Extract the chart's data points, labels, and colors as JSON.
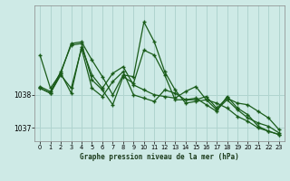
{
  "title": "Graphe pression niveau de la mer (hPa)",
  "background_color": "#ceeae6",
  "grid_color": "#b0d4cf",
  "line_color": "#1a5c1a",
  "xlim": [
    -0.5,
    23.5
  ],
  "ylim": [
    1036.6,
    1040.7
  ],
  "yticks": [
    1037,
    1038
  ],
  "xticks": [
    0,
    1,
    2,
    3,
    4,
    5,
    6,
    7,
    8,
    9,
    10,
    11,
    12,
    13,
    14,
    15,
    16,
    17,
    18,
    19,
    20,
    21,
    22,
    23
  ],
  "line1": [
    1039.2,
    1038.2,
    1038.65,
    1039.55,
    1039.6,
    1039.05,
    1038.55,
    1038.0,
    1038.6,
    1038.55,
    1040.2,
    1039.6,
    1038.7,
    1038.15,
    1037.75,
    1037.8,
    1037.85,
    1037.55,
    1037.85,
    1037.55,
    1037.3,
    1037.15,
    1037.05,
    1036.85
  ],
  "line2": [
    1038.25,
    1038.1,
    1038.7,
    1039.5,
    1039.55,
    1038.45,
    1038.15,
    1037.7,
    1038.55,
    1038.35,
    1039.35,
    1039.2,
    1038.6,
    1037.85,
    1037.85,
    1037.85,
    1037.95,
    1037.6,
    1037.9,
    1037.75,
    1037.7,
    1037.5,
    1037.3,
    1036.95
  ],
  "line3": [
    1038.2,
    1038.05,
    1038.65,
    1038.05,
    1039.45,
    1038.6,
    1038.2,
    1038.65,
    1038.85,
    1038.3,
    1038.15,
    1038.0,
    1037.95,
    1037.9,
    1038.1,
    1038.25,
    1037.85,
    1037.75,
    1037.6,
    1037.35,
    1037.2,
    1037.0,
    1036.9,
    1036.8
  ],
  "line4": [
    1038.2,
    1038.05,
    1038.6,
    1038.2,
    1039.4,
    1038.2,
    1037.95,
    1038.4,
    1038.7,
    1038.0,
    1037.9,
    1037.8,
    1038.15,
    1038.05,
    1037.85,
    1037.9,
    1037.7,
    1037.5,
    1037.95,
    1037.6,
    1037.4,
    1037.05,
    1036.9,
    1036.8
  ]
}
